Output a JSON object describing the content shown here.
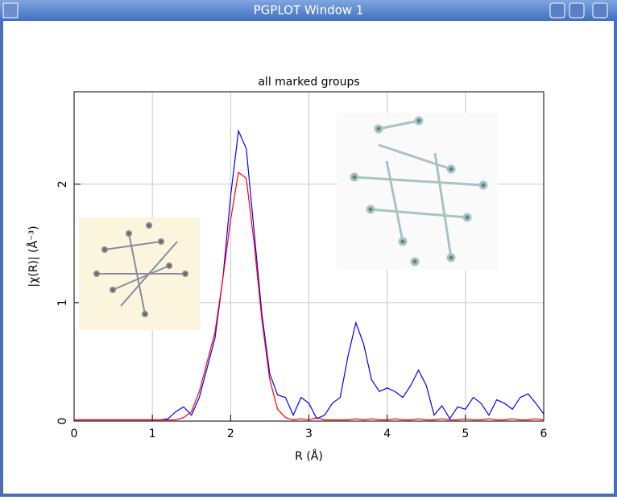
{
  "window": {
    "title": "PGPLOT Window 1"
  },
  "chart_data": {
    "type": "line",
    "title": "all marked groups",
    "x_label": "R (Å)",
    "y_label": "|χ(R)| (Å⁻³)",
    "x": [
      0,
      0.1,
      0.2,
      0.3,
      0.4,
      0.5,
      0.6,
      0.7,
      0.8,
      0.9,
      1,
      1.1,
      1.2,
      1.3,
      1.4,
      1.5,
      1.6,
      1.7,
      1.8,
      1.9,
      2,
      2.1,
      2.2,
      2.3,
      2.4,
      2.5,
      2.6,
      2.7,
      2.8,
      2.9,
      3,
      3.1,
      3.2,
      3.3,
      3.4,
      3.5,
      3.6,
      3.7,
      3.8,
      3.9,
      4,
      4.1,
      4.2,
      4.3,
      4.4,
      4.5,
      4.6,
      4.7,
      4.8,
      4.9,
      5,
      5.1,
      5.2,
      5.3,
      5.4,
      5.5,
      5.6,
      5.7,
      5.8,
      5.9,
      6
    ],
    "series": [
      {
        "color": "#0000ff",
        "values": [
          0.01,
          0.01,
          0.01,
          0.01,
          0.01,
          0.01,
          0.01,
          0.01,
          0.01,
          0.01,
          0.01,
          0.01,
          0.02,
          0.08,
          0.12,
          0.05,
          0.2,
          0.45,
          0.7,
          1.2,
          1.9,
          2.45,
          2.3,
          1.6,
          0.9,
          0.4,
          0.22,
          0.2,
          0.05,
          0.2,
          0.15,
          0.02,
          0.05,
          0.15,
          0.2,
          0.55,
          0.83,
          0.65,
          0.35,
          0.25,
          0.28,
          0.25,
          0.2,
          0.3,
          0.43,
          0.3,
          0.05,
          0.13,
          0.02,
          0.12,
          0.1,
          0.2,
          0.15,
          0.05,
          0.18,
          0.15,
          0.1,
          0.2,
          0.23,
          0.15,
          0.06
        ]
      },
      {
        "color": "#ff0000",
        "values": [
          0.01,
          0.01,
          0.01,
          0.01,
          0.01,
          0.01,
          0.01,
          0.01,
          0.01,
          0.01,
          0.01,
          0.01,
          0.01,
          0.01,
          0.03,
          0.08,
          0.25,
          0.5,
          0.75,
          1.2,
          1.7,
          2.1,
          2.05,
          1.5,
          0.85,
          0.35,
          0.1,
          0.03,
          0.01,
          0.02,
          0.01,
          0.03,
          0.01,
          0.01,
          0.01,
          0.01,
          0.02,
          0.01,
          0.02,
          0.01,
          0.01,
          0.02,
          0.01,
          0.01,
          0.02,
          0.01,
          0.01,
          0.02,
          0.01,
          0.01,
          0.02,
          0.01,
          0.01,
          0.02,
          0.01,
          0.01,
          0.02,
          0.01,
          0.01,
          0.02,
          0.01
        ]
      }
    ],
    "xlim": [
      0,
      6
    ],
    "xticks": [
      0,
      1,
      2,
      3,
      4,
      5,
      6
    ],
    "ylim": [
      0,
      2.78
    ],
    "yticks": [
      0,
      1,
      2
    ],
    "grid": true
  }
}
